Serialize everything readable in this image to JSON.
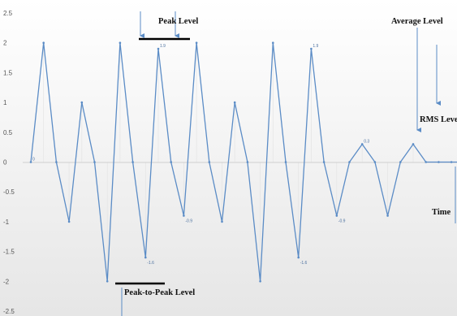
{
  "chart_data": {
    "type": "line",
    "title": "",
    "xlabel": "",
    "ylabel": "",
    "ylim": [
      -2.5,
      2.5
    ],
    "y_ticks": [
      "2.5",
      "2",
      "1.5",
      "1",
      "0.5",
      "0",
      "-0.5",
      "-1",
      "-1.5",
      "-2",
      "-2.5"
    ],
    "grid": false,
    "background": "vertical gradient, white at top to light gray at bottom",
    "series": [
      {
        "color": "#5b8cc6",
        "x": [
          0,
          1,
          2,
          3,
          4,
          5,
          6,
          7,
          8,
          9,
          10,
          11,
          12,
          13,
          14,
          15,
          16,
          17,
          18,
          19,
          20,
          21,
          22,
          23,
          24,
          25,
          26,
          27,
          28,
          29,
          30,
          31,
          32,
          33,
          34,
          35,
          36
        ],
        "values": [
          0,
          2,
          0,
          -1,
          1,
          0,
          -2,
          2,
          0,
          -1.6,
          1.9,
          0,
          -0.9,
          2,
          0,
          -1,
          1,
          0,
          -2,
          2,
          0,
          -1.6,
          1.9,
          0,
          -0.9,
          0,
          0.3,
          0,
          -0.9,
          0,
          0.3,
          0,
          0,
          0,
          0,
          0,
          0
        ]
      }
    ],
    "point_labels": [
      {
        "index": 0,
        "text": "0"
      },
      {
        "index": 9,
        "text": "-1.6"
      },
      {
        "index": 10,
        "text": "1.9"
      },
      {
        "index": 12,
        "text": "-0.9"
      },
      {
        "index": 21,
        "text": "-1.6"
      },
      {
        "index": 22,
        "text": "1.9"
      },
      {
        "index": 24,
        "text": "-0.9"
      },
      {
        "index": 26,
        "text": "0.3"
      }
    ],
    "annotations": {
      "peak_level": "Peak Level",
      "average_level": "Average Level",
      "rms_level": "RMS Leve",
      "time": "Time",
      "peak_to_peak_level": "Peak-to-Peak Level"
    },
    "annotation_color": "#000000",
    "arrow_color": "#5b8cc6"
  }
}
